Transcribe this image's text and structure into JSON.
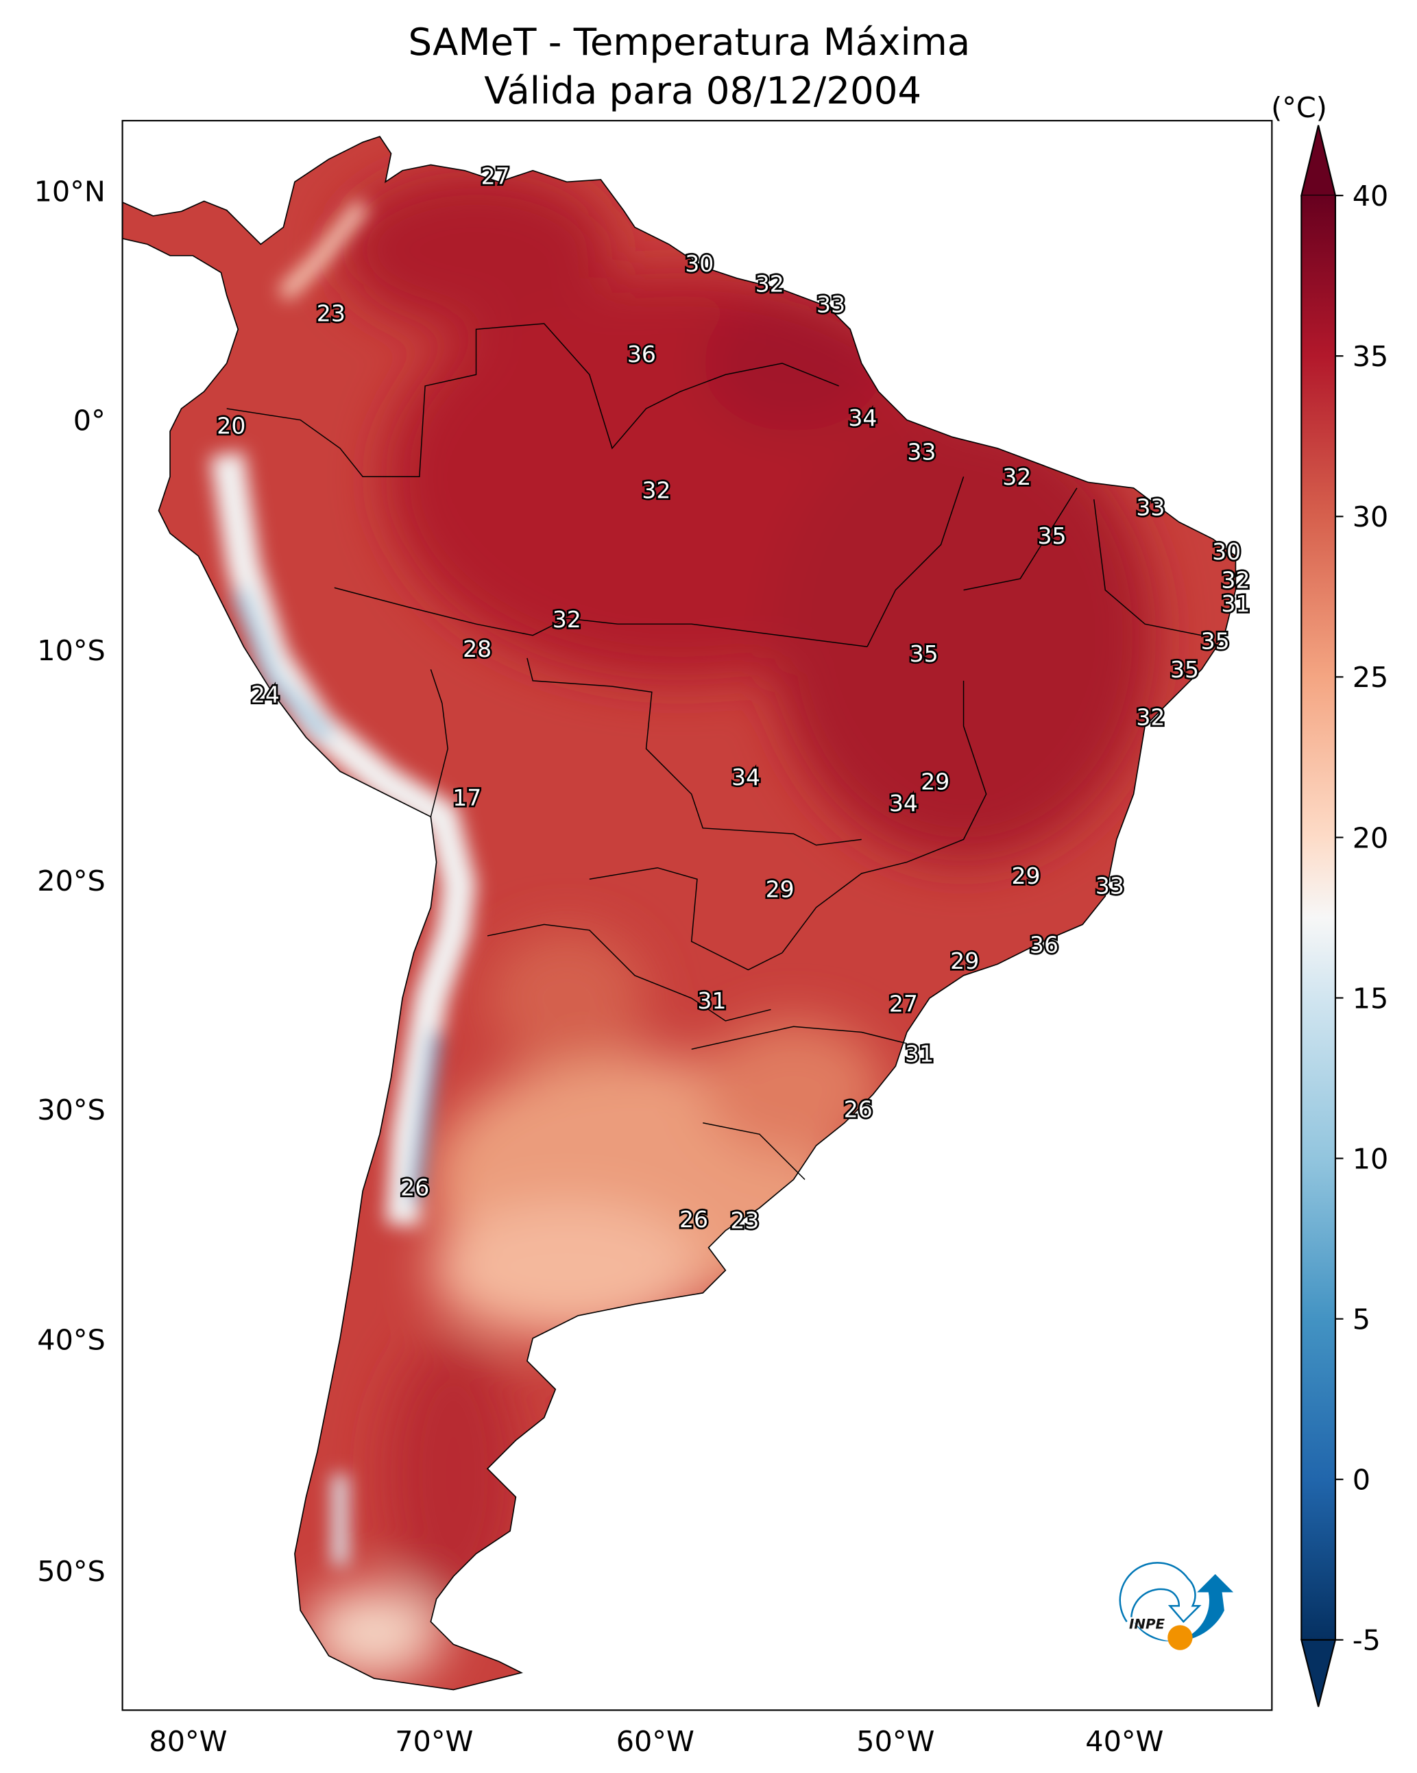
{
  "title": {
    "line1": "SAMeT - Temperatura Máxima",
    "line2": "Válida para 08/12/2004"
  },
  "colorbar": {
    "unit": "(°C)",
    "ticks": [
      "40",
      "35",
      "30",
      "25",
      "20",
      "15",
      "10",
      "5",
      "0",
      "-5"
    ],
    "range": [
      -5,
      40
    ],
    "colormap": "RdBu_r",
    "colors": {
      "c40": "#67001f",
      "c35": "#b2182b",
      "c30": "#d6604d",
      "c25": "#f4a582",
      "c20": "#fddbc7",
      "c17": "#f7f7f7",
      "c15": "#d1e5f0",
      "c10": "#92c5de",
      "c5": "#4393c3",
      "c0": "#2166ac",
      "cm5": "#053061"
    }
  },
  "axes": {
    "lat_labels": [
      "10°N",
      "0°",
      "10°S",
      "20°S",
      "30°S",
      "40°S",
      "50°S"
    ],
    "lon_labels": [
      "80°W",
      "70°W",
      "60°W",
      "50°W",
      "40°W"
    ]
  },
  "stations": [
    "27",
    "30",
    "32",
    "33",
    "23",
    "36",
    "34",
    "20",
    "33",
    "32",
    "32",
    "33",
    "35",
    "30",
    "32",
    "31",
    "32",
    "35",
    "28",
    "35",
    "35",
    "24",
    "32",
    "34",
    "29",
    "17",
    "34",
    "29",
    "33",
    "29",
    "36",
    "29",
    "31",
    "27",
    "31",
    "26",
    "26",
    "26",
    "23"
  ],
  "logo": {
    "text": "INPE"
  }
}
